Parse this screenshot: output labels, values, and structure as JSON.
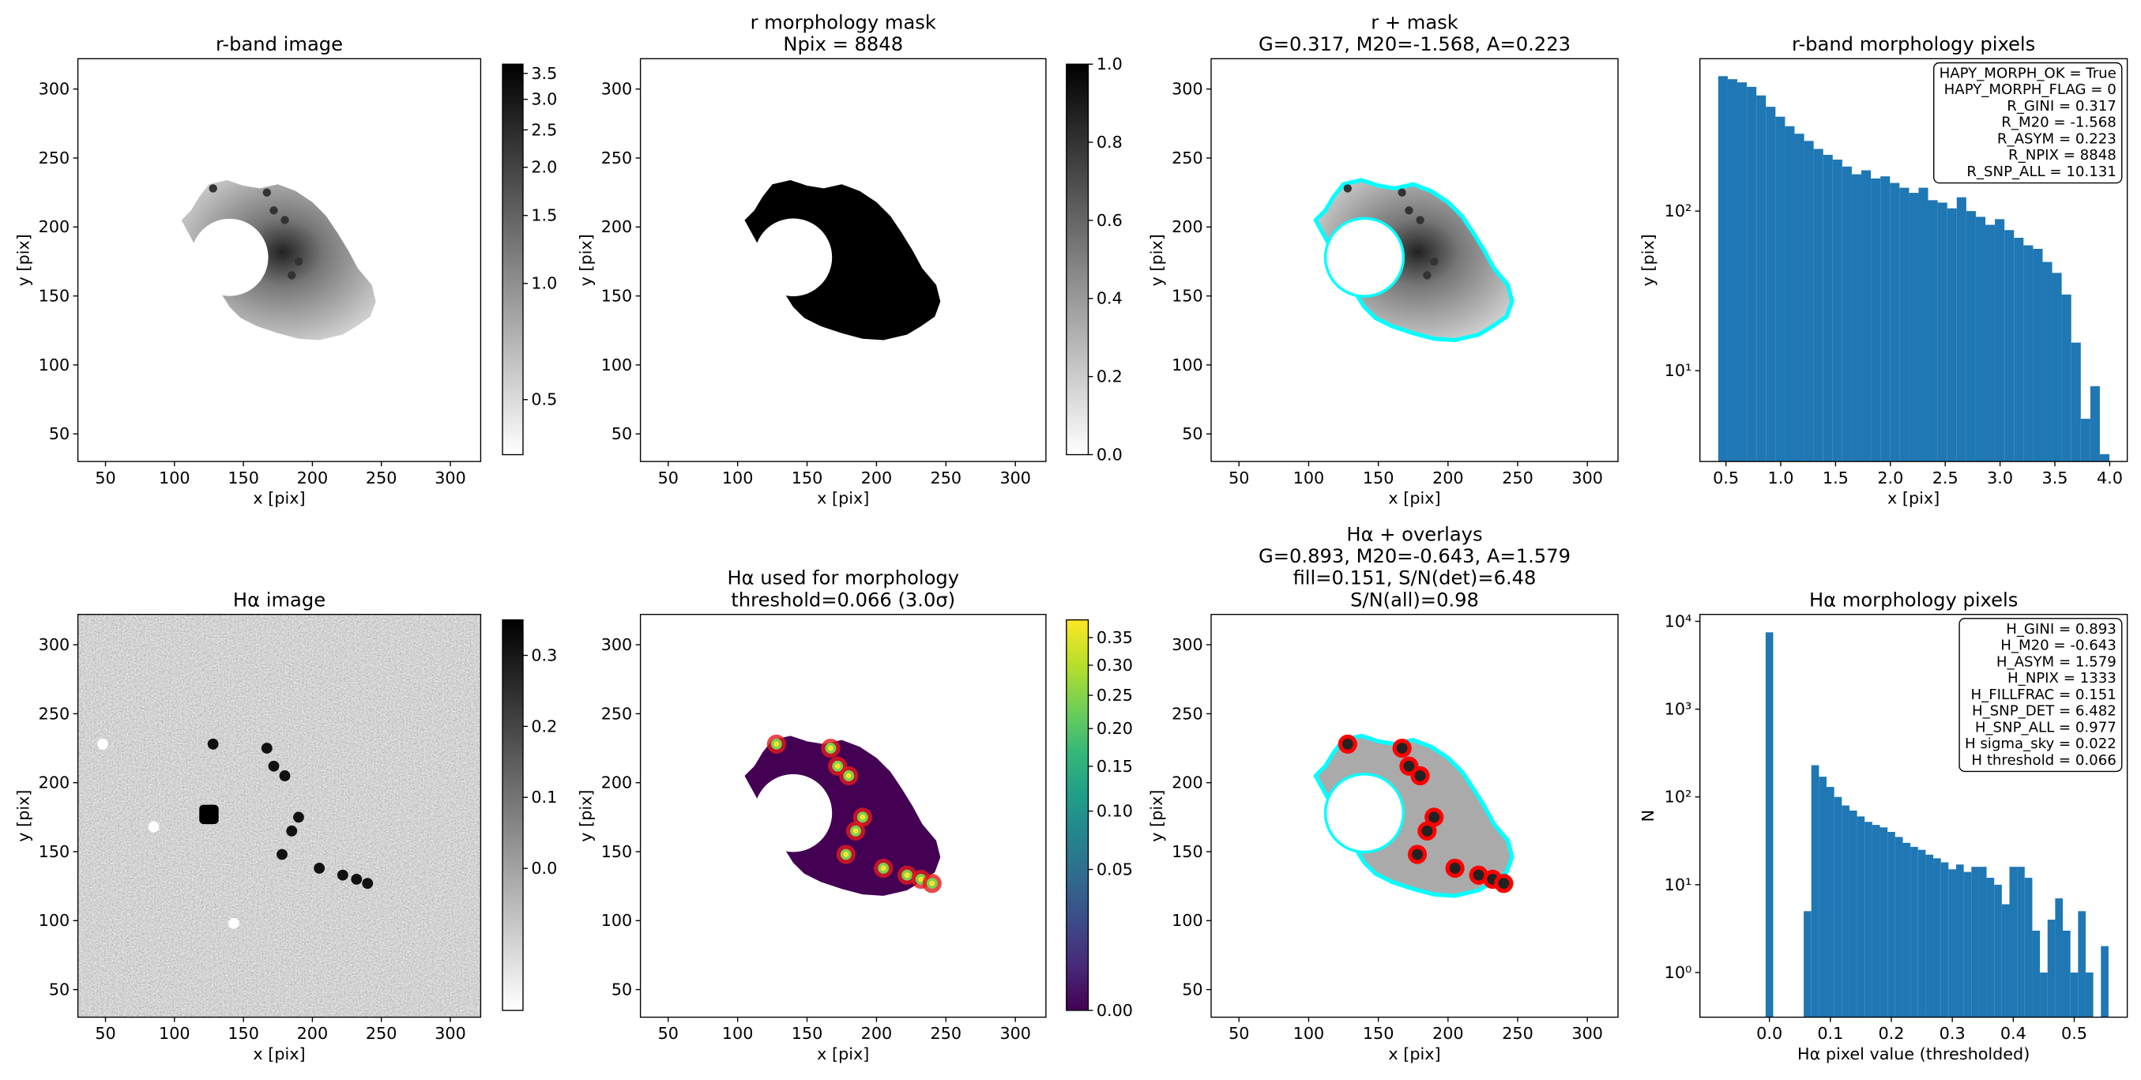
{
  "chart_data": [
    {
      "type": "image",
      "title": [
        "r-band image"
      ],
      "xlabel": "x [pix]",
      "ylabel": "y [pix]",
      "xlim": [
        30,
        322
      ],
      "ylim": [
        30,
        322
      ],
      "xticks": [
        50,
        100,
        150,
        200,
        250,
        300
      ],
      "yticks": [
        50,
        100,
        150,
        200,
        250,
        300
      ],
      "colorbar": {
        "cmap": "gray_r",
        "scale": "log",
        "clim": [
          0.36,
          3.7
        ],
        "ticks": [
          0.5,
          {
            "value": 1,
            "label": "1.0"
          },
          1.5,
          {
            "value": 2,
            "label": "2.0"
          },
          2.5,
          {
            "value": 3,
            "label": "3.0"
          },
          3.5
        ]
      }
    },
    {
      "type": "image",
      "title": [
        "r morphology mask",
        "Npix = 8848"
      ],
      "xlabel": "x [pix]",
      "ylabel": "y [pix]",
      "xlim": [
        30,
        322
      ],
      "ylim": [
        30,
        322
      ],
      "xticks": [
        50,
        100,
        150,
        200,
        250,
        300
      ],
      "yticks": [
        50,
        100,
        150,
        200,
        250,
        300
      ],
      "colorbar": {
        "cmap": "gray_r",
        "scale": "linear",
        "clim": [
          0,
          1
        ],
        "ticks": [
          {
            "value": 0,
            "label": "0.0"
          },
          0.2,
          0.4,
          0.6,
          0.8,
          {
            "value": 1,
            "label": "1.0"
          }
        ]
      }
    },
    {
      "type": "image",
      "title": [
        "r + mask",
        "G=0.317, M20=-1.568, A=0.223"
      ],
      "xlabel": "x [pix]",
      "ylabel": "y [pix]",
      "xlim": [
        30,
        322
      ],
      "ylim": [
        30,
        322
      ],
      "xticks": [
        50,
        100,
        150,
        200,
        250,
        300
      ],
      "yticks": [
        50,
        100,
        150,
        200,
        250,
        300
      ]
    },
    {
      "type": "histogram",
      "title": [
        "r-band morphology pixels"
      ],
      "xlabel": "x [pix]",
      "ylabel": "y [pix]",
      "color": "#1f77b4",
      "log_y": true,
      "xlim": [
        0.263,
        4.16
      ],
      "ylim": [
        2.7,
        900
      ],
      "xticks": [
        0.5,
        {
          "value": 1,
          "label": "1.0"
        },
        1.5,
        {
          "value": 2,
          "label": "2.0"
        },
        2.5,
        {
          "value": 3,
          "label": "3.0"
        },
        3.5,
        {
          "value": 4,
          "label": "4.0"
        }
      ],
      "yticks": [
        {
          "value": 10,
          "label": "10¹"
        },
        {
          "value": 100,
          "label": "10²"
        }
      ],
      "bins": [
        0.43,
        0.517,
        0.604,
        0.691,
        0.778,
        0.865,
        0.952,
        1.039,
        1.126,
        1.213,
        1.3,
        1.387,
        1.474,
        1.561,
        1.648,
        1.735,
        1.822,
        1.909,
        1.996,
        2.083,
        2.17,
        2.257,
        2.344,
        2.431,
        2.518,
        2.605,
        2.692,
        2.779,
        2.866,
        2.953,
        3.04,
        3.127,
        3.214,
        3.301,
        3.388,
        3.475,
        3.562,
        3.649,
        3.736,
        3.823,
        3.91,
        3.997
      ],
      "counts": [
        700,
        670,
        640,
        600,
        530,
        450,
        390,
        340,
        305,
        275,
        245,
        225,
        210,
        190,
        170,
        180,
        160,
        165,
        150,
        140,
        130,
        140,
        117,
        113,
        104,
        122,
        100,
        92,
        82,
        89,
        76,
        68,
        61,
        58,
        48,
        41,
        30,
        15,
        5,
        8,
        3
      ],
      "annotation": [
        "HAPY_MORPH_OK = True",
        "HAPY_MORPH_FLAG = 0",
        "R_GINI = 0.317",
        "R_M20 = -1.568",
        "R_ASYM = 0.223",
        "R_NPIX = 8848",
        "R_SNP_ALL = 10.131"
      ]
    },
    {
      "type": "image",
      "title": [
        "Hα image"
      ],
      "xlabel": "x [pix]",
      "ylabel": "y [pix]",
      "xlim": [
        30,
        322
      ],
      "ylim": [
        30,
        322
      ],
      "xticks": [
        50,
        100,
        150,
        200,
        250,
        300
      ],
      "yticks": [
        50,
        100,
        150,
        200,
        250,
        300
      ],
      "colorbar": {
        "cmap": "gray_r",
        "scale": "linear",
        "clim": [
          -0.2,
          0.35
        ],
        "ticks": [
          {
            "value": 0,
            "label": "0.0"
          },
          0.1,
          0.2,
          0.3
        ]
      }
    },
    {
      "type": "image",
      "title": [
        "Hα used for morphology",
        "threshold=0.066 (3.0σ)"
      ],
      "xlabel": "x [pix]",
      "ylabel": "y [pix]",
      "xlim": [
        30,
        322
      ],
      "ylim": [
        30,
        322
      ],
      "xticks": [
        50,
        100,
        150,
        200,
        250,
        300
      ],
      "yticks": [
        50,
        100,
        150,
        200,
        250,
        300
      ],
      "colorbar": {
        "cmap": "viridis",
        "scale": "sqrt",
        "clim": [
          0,
          0.384
        ],
        "ticks": [
          {
            "value": 0,
            "label": "0.00"
          },
          0.05,
          {
            "value": 0.1,
            "label": "0.10"
          },
          0.15,
          {
            "value": 0.2,
            "label": "0.20"
          },
          0.25,
          {
            "value": 0.3,
            "label": "0.30"
          },
          0.35
        ]
      }
    },
    {
      "type": "image",
      "title": [
        "Hα + overlays",
        "G=0.893, M20=-0.643, A=1.579",
        "fill=0.151, S/N(det)=6.48",
        "S/N(all)=0.98"
      ],
      "xlabel": "x [pix]",
      "ylabel": "y [pix]",
      "xlim": [
        30,
        322
      ],
      "ylim": [
        30,
        322
      ],
      "xticks": [
        50,
        100,
        150,
        200,
        250,
        300
      ],
      "yticks": [
        50,
        100,
        150,
        200,
        250,
        300
      ]
    },
    {
      "type": "histogram",
      "title": [
        "Hα morphology pixels"
      ],
      "xlabel": "Hα pixel value (thresholded)",
      "ylabel": "N",
      "color": "#1f77b4",
      "log_y": true,
      "xlim": [
        -0.114,
        0.587
      ],
      "ylim": [
        0.31,
        12000
      ],
      "xticks": [
        {
          "value": 0,
          "label": "0.0"
        },
        0.1,
        0.2,
        0.3,
        0.4,
        0.5
      ],
      "yticks": [
        {
          "value": 1,
          "label": "10⁰"
        },
        {
          "value": 10,
          "label": "10¹"
        },
        {
          "value": 100,
          "label": "10²"
        },
        {
          "value": 1000,
          "label": "10³"
        },
        {
          "value": 10000,
          "label": "10⁴"
        }
      ],
      "bins": [
        -0.00625,
        0.00625,
        0.01875,
        0.03125,
        0.04375,
        0.05625,
        0.06875,
        0.08125,
        0.09375,
        0.10625,
        0.11875,
        0.13125,
        0.14375,
        0.15625,
        0.16875,
        0.18125,
        0.19375,
        0.20625,
        0.21875,
        0.23125,
        0.24375,
        0.25625,
        0.26875,
        0.28125,
        0.29375,
        0.30625,
        0.31875,
        0.33125,
        0.34375,
        0.35625,
        0.36875,
        0.38125,
        0.39375,
        0.40625,
        0.41875,
        0.43125,
        0.44375,
        0.45625,
        0.46875,
        0.48125,
        0.49375,
        0.50625,
        0.51875,
        0.53125,
        0.54375,
        0.55625
      ],
      "counts": [
        7500,
        0,
        0,
        0,
        0,
        5,
        230,
        170,
        130,
        100,
        80,
        70,
        60,
        52,
        48,
        45,
        40,
        35,
        30,
        27,
        25,
        22,
        20,
        18,
        15,
        17,
        14,
        16,
        16,
        12,
        10,
        6,
        16,
        16,
        12,
        3,
        1,
        4,
        7,
        3,
        1,
        5,
        1,
        0,
        2
      ],
      "annotation": [
        "H_GINI = 0.893",
        "H_M20 = -0.643",
        "H_ASYM = 1.579",
        "H_NPIX = 1333",
        "H_FILLFRAC = 0.151",
        "H_SNP_DET = 6.482",
        "H_SNP_ALL = 0.977",
        "H sigma_sky = 0.022",
        "H threshold = 0.066"
      ]
    }
  ]
}
